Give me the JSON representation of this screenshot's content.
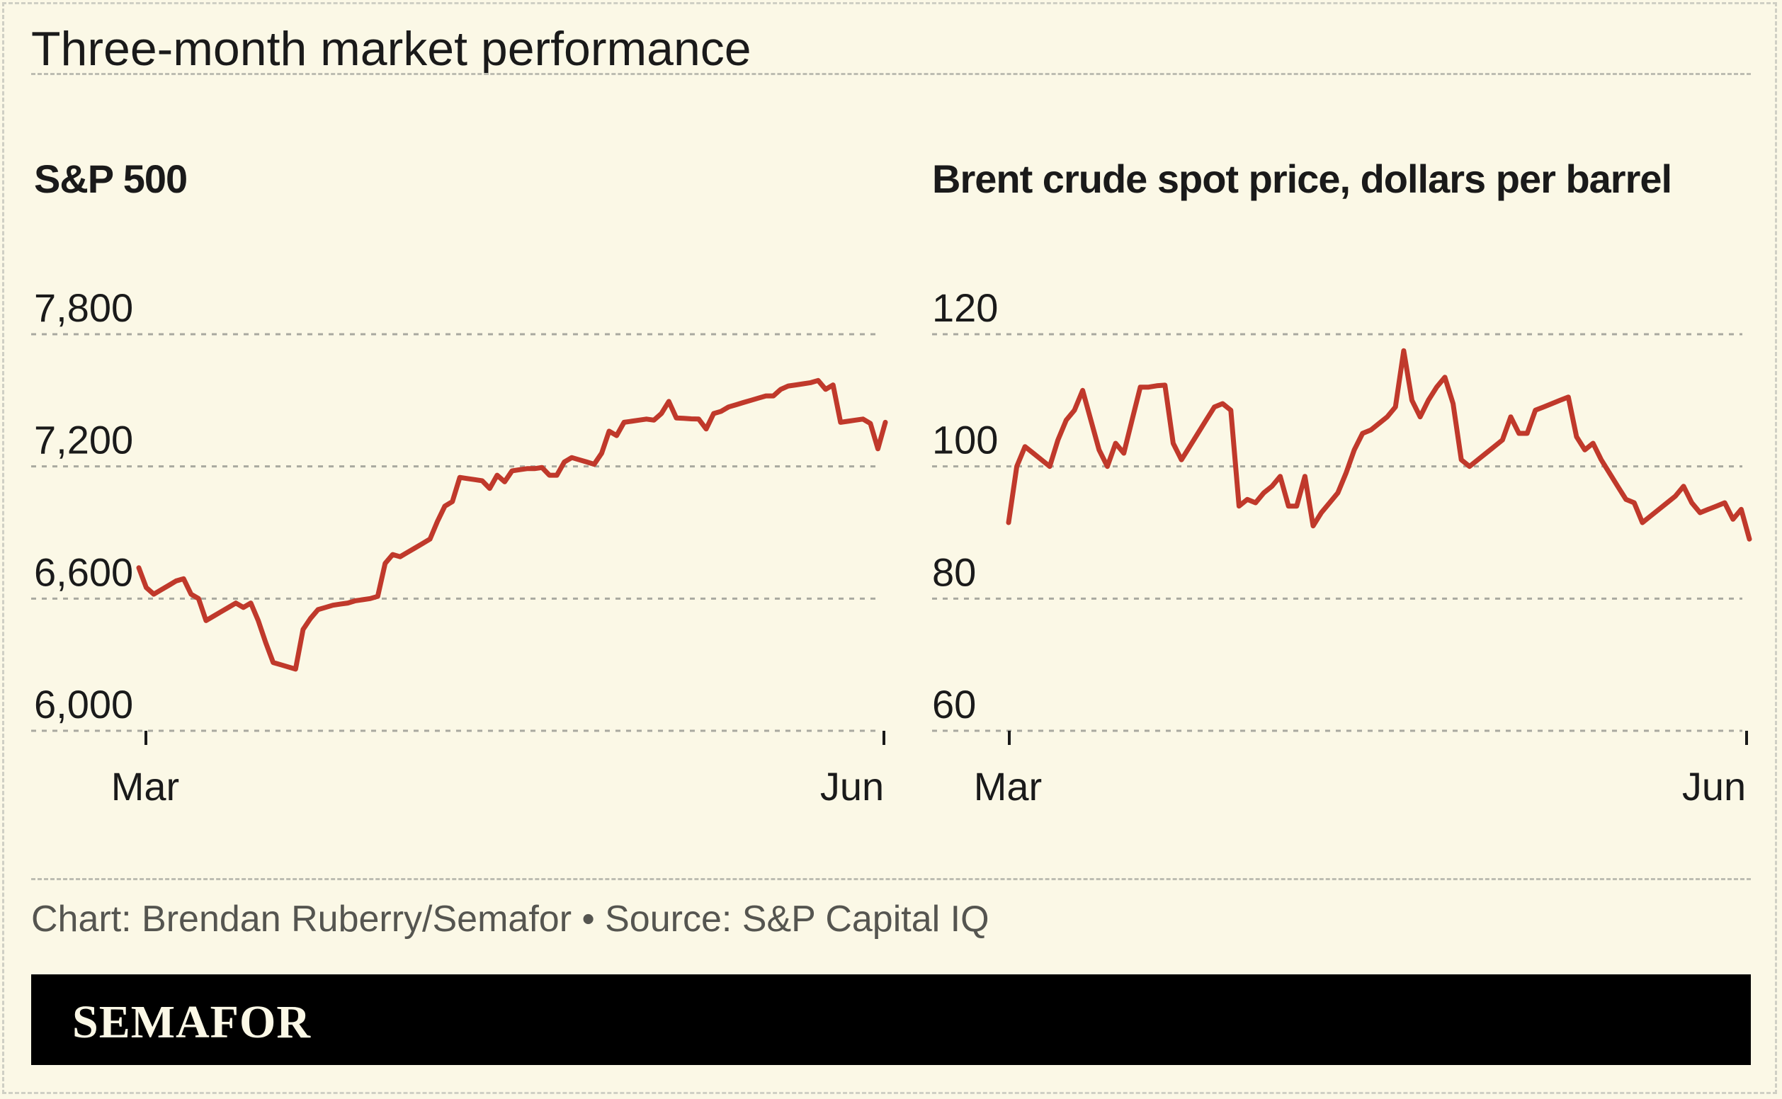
{
  "title": "Three-month market performance",
  "credit": "Chart: Brendan Ruberry/Semafor • Source: S&P Capital IQ",
  "brand": "SEMAFOR",
  "colors": {
    "background": "#fbf8e6",
    "line": "#c0392b",
    "brand_bar": "#000000"
  },
  "chart_data": [
    {
      "type": "line",
      "title": "S&P 500",
      "x_ticks": [
        "Mar",
        "Jun"
      ],
      "y_ticks": [
        "7,800",
        "7,200",
        "6,600",
        "6,000"
      ],
      "y_tick_values": [
        7800,
        7200,
        6600,
        6000
      ],
      "ylim": [
        6000,
        7800
      ],
      "grid": true,
      "series": [
        {
          "values": [
            6740,
            6650,
            6620,
            6640,
            6660,
            6680,
            6690,
            6620,
            6600,
            6500,
            6520,
            6540,
            6560,
            6580,
            6560,
            6580,
            6500,
            6400,
            6310,
            6300,
            6290,
            6280,
            6460,
            6510,
            6550,
            6560,
            6570,
            6575,
            6580,
            6590,
            6595,
            6600,
            6610,
            6760,
            6800,
            6790,
            6810,
            6830,
            6850,
            6870,
            6950,
            7020,
            7040,
            7150,
            7145,
            7140,
            7135,
            7100,
            7160,
            7130,
            7180,
            7185,
            7190,
            7190,
            7195,
            7160,
            7160,
            7220,
            7240,
            7230,
            7220,
            7210,
            7260,
            7360,
            7340,
            7400,
            7405,
            7410,
            7415,
            7410,
            7440,
            7495,
            7420,
            7418,
            7416,
            7415,
            7370,
            7440,
            7450,
            7470,
            7480,
            7490,
            7500,
            7510,
            7520,
            7520,
            7550,
            7565,
            7570,
            7575,
            7580,
            7590,
            7550,
            7570,
            7400,
            7405,
            7410,
            7415,
            7395,
            7280,
            7400
          ]
        }
      ]
    },
    {
      "type": "line",
      "title": "Brent crude spot price, dollars per barrel",
      "x_ticks": [
        "Mar",
        "Jun"
      ],
      "y_ticks": [
        "120",
        "100",
        "80",
        "60"
      ],
      "y_tick_values": [
        120,
        100,
        80,
        60
      ],
      "ylim": [
        60,
        120
      ],
      "grid": true,
      "series": [
        {
          "values": [
            91.5,
            100,
            103,
            102,
            101,
            100,
            104,
            107,
            108.5,
            111.5,
            107,
            102.5,
            100,
            103.5,
            102,
            107,
            112,
            112,
            112.2,
            112.3,
            103.5,
            101,
            103,
            105,
            107,
            109,
            109.5,
            108.5,
            94,
            95,
            94.5,
            96,
            97,
            98.5,
            94,
            94,
            98.5,
            91,
            93,
            94.5,
            96,
            99,
            102.5,
            105,
            105.5,
            106.5,
            107.5,
            109,
            117.5,
            110,
            107.5,
            110,
            112,
            113.5,
            109.5,
            101,
            100,
            101,
            102,
            103,
            104,
            107.5,
            105,
            105,
            108.5,
            109,
            109.5,
            110,
            110.5,
            104.5,
            102.5,
            103.5,
            101,
            99,
            97,
            95,
            94.5,
            91.5,
            92.5,
            93.5,
            94.5,
            95.5,
            97,
            94.5,
            93,
            93.5,
            94,
            94.5,
            92,
            93.5,
            89
          ]
        }
      ]
    }
  ]
}
